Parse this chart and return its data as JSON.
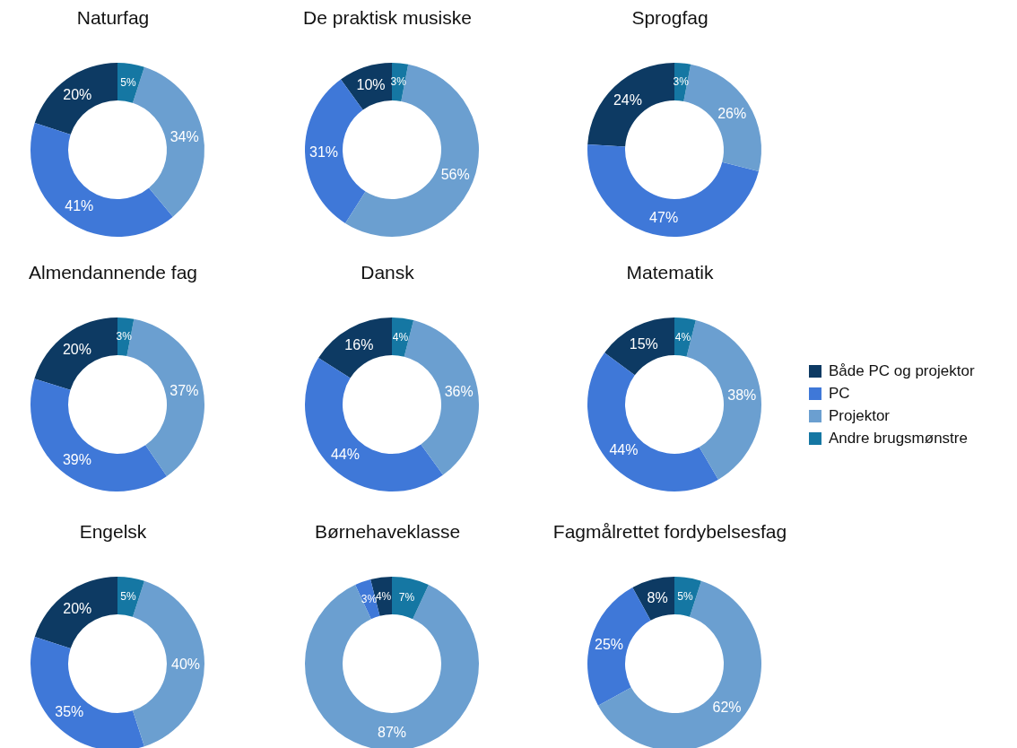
{
  "chart_data": [
    {
      "type": "donut",
      "title": "Naturfag",
      "categories": [
        null,
        null,
        null,
        null
      ],
      "values": [
        20,
        41,
        34,
        5
      ],
      "value_labels": [
        "20%",
        "41%",
        "34%",
        "5%"
      ],
      "colors": [
        "#0d3a63",
        "#3f78d8",
        "#6b9fd0",
        "#1577a3"
      ]
    },
    {
      "type": "donut",
      "title": "De praktisk musiske",
      "categories": [
        null,
        null,
        null,
        null
      ],
      "values": [
        10,
        31,
        56,
        3
      ],
      "value_labels": [
        "10%",
        "31%",
        "56%",
        "3%"
      ],
      "colors": [
        "#0d3a63",
        "#3f78d8",
        "#6b9fd0",
        "#1577a3"
      ]
    },
    {
      "type": "donut",
      "title": "Sprogfag",
      "categories": [
        null,
        null,
        null,
        null
      ],
      "values": [
        24,
        47,
        26,
        3
      ],
      "value_labels": [
        "24%",
        "47%",
        "26%",
        "3%"
      ],
      "colors": [
        "#0d3a63",
        "#3f78d8",
        "#6b9fd0",
        "#1577a3"
      ]
    },
    {
      "type": "donut",
      "title": "Almendannende fag",
      "categories": [
        null,
        null,
        null,
        null
      ],
      "values": [
        20,
        39,
        37,
        3
      ],
      "value_labels": [
        "20%",
        "39%",
        "37%",
        "3%"
      ],
      "colors": [
        "#0d3a63",
        "#3f78d8",
        "#6b9fd0",
        "#1577a3"
      ]
    },
    {
      "type": "donut",
      "title": "Dansk",
      "categories": [
        null,
        null,
        null,
        null
      ],
      "values": [
        16,
        44,
        36,
        4
      ],
      "value_labels": [
        "16%",
        "44%",
        "36%",
        "4%"
      ],
      "colors": [
        "#0d3a63",
        "#3f78d8",
        "#6b9fd0",
        "#1577a3"
      ]
    },
    {
      "type": "donut",
      "title": "Matematik",
      "categories": [
        "Både PC og projektor",
        "PC",
        "Projektor",
        "Andre brugsmønstre"
      ],
      "values": [
        15,
        44,
        38,
        4
      ],
      "value_labels": [
        "15%",
        "44%",
        "38%",
        "4%"
      ],
      "colors": [
        "#0d3a63",
        "#3f78d8",
        "#6b9fd0",
        "#1577a3"
      ],
      "legend": "right"
    },
    {
      "type": "donut",
      "title": "Engelsk",
      "categories": [
        null,
        null,
        null,
        null
      ],
      "values": [
        20,
        35,
        40,
        5
      ],
      "value_labels": [
        "20%",
        "35%",
        "40%",
        "5%"
      ],
      "colors": [
        "#0d3a63",
        "#3f78d8",
        "#6b9fd0",
        "#1577a3"
      ]
    },
    {
      "type": "donut",
      "title": "Børnehaveklasse",
      "categories": [
        null,
        null,
        null,
        null
      ],
      "values": [
        4,
        3,
        87,
        7
      ],
      "value_labels": [
        "4%",
        "3%",
        "87%",
        "7%"
      ],
      "colors": [
        "#0d3a63",
        "#3f78d8",
        "#6b9fd0",
        "#1577a3"
      ]
    },
    {
      "type": "donut",
      "title": "Fagmålrettet fordybelsesfag",
      "categories": [
        null,
        null,
        null,
        null
      ],
      "values": [
        8,
        25,
        62,
        5
      ],
      "value_labels": [
        "8%",
        "25%",
        "62%",
        "5%"
      ],
      "colors": [
        "#0d3a63",
        "#3f78d8",
        "#6b9fd0",
        "#1577a3"
      ]
    }
  ]
}
